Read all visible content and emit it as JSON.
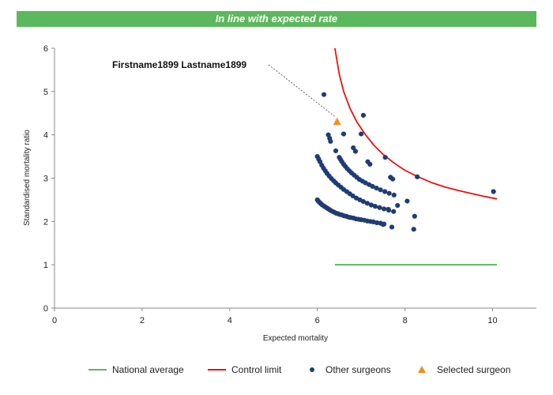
{
  "banner": {
    "title": "In line with expected rate"
  },
  "colors": {
    "banner": "#5cb85c",
    "national": "#5cb85c",
    "control": "#e8140e",
    "others": "#1f3d73",
    "selected": "#f0901e"
  },
  "chart_data": {
    "type": "scatter",
    "title": "In line with expected rate",
    "xlabel": "Expected mortality",
    "ylabel": "Standardised mortality ratio",
    "xlim": [
      0,
      11
    ],
    "ylim": [
      0,
      6
    ],
    "xticks": [
      0,
      2,
      4,
      6,
      8,
      10
    ],
    "yticks": [
      0,
      1,
      2,
      3,
      4,
      5,
      6
    ],
    "grid": false,
    "legend_position": "bottom",
    "annotation": {
      "text": "Firstname1899 Lastname1899",
      "target": [
        6.45,
        4.3
      ]
    },
    "series": [
      {
        "name": "National average",
        "kind": "line",
        "points": [
          [
            6.4,
            1.0
          ],
          [
            10.1,
            1.0
          ]
        ]
      },
      {
        "name": "Control limit",
        "kind": "line",
        "points": [
          [
            6.4,
            6.0
          ],
          [
            6.5,
            5.4
          ],
          [
            6.6,
            5.0
          ],
          [
            6.75,
            4.6
          ],
          [
            6.9,
            4.3
          ],
          [
            7.1,
            4.0
          ],
          [
            7.3,
            3.75
          ],
          [
            7.5,
            3.55
          ],
          [
            7.75,
            3.35
          ],
          [
            8.0,
            3.18
          ],
          [
            8.3,
            3.03
          ],
          [
            8.6,
            2.9
          ],
          [
            8.9,
            2.8
          ],
          [
            9.2,
            2.72
          ],
          [
            9.5,
            2.65
          ],
          [
            9.8,
            2.58
          ],
          [
            10.1,
            2.52
          ]
        ]
      },
      {
        "name": "Other surgeons",
        "kind": "scatter",
        "points": [
          [
            6.0,
            2.5
          ],
          [
            6.02,
            2.47
          ],
          [
            6.04,
            2.45
          ],
          [
            6.06,
            2.43
          ],
          [
            6.08,
            2.41
          ],
          [
            6.1,
            2.39
          ],
          [
            6.13,
            2.37
          ],
          [
            6.16,
            2.35
          ],
          [
            6.19,
            2.33
          ],
          [
            6.22,
            2.31
          ],
          [
            6.25,
            2.29
          ],
          [
            6.28,
            2.27
          ],
          [
            6.31,
            2.25
          ],
          [
            6.35,
            2.23
          ],
          [
            6.39,
            2.21
          ],
          [
            6.43,
            2.19
          ],
          [
            6.47,
            2.18
          ],
          [
            6.51,
            2.16
          ],
          [
            6.56,
            2.15
          ],
          [
            6.61,
            2.13
          ],
          [
            6.66,
            2.12
          ],
          [
            6.71,
            2.1
          ],
          [
            6.76,
            2.09
          ],
          [
            6.82,
            2.08
          ],
          [
            6.88,
            2.06
          ],
          [
            6.94,
            2.05
          ],
          [
            7.0,
            2.04
          ],
          [
            7.07,
            2.03
          ],
          [
            7.14,
            2.01
          ],
          [
            7.21,
            2.0
          ],
          [
            7.28,
            1.99
          ],
          [
            7.36,
            1.97
          ],
          [
            7.44,
            1.96
          ],
          [
            7.52,
            1.94
          ],
          [
            6.0,
            3.5
          ],
          [
            6.03,
            3.44
          ],
          [
            6.06,
            3.38
          ],
          [
            6.1,
            3.3
          ],
          [
            6.14,
            3.23
          ],
          [
            6.18,
            3.17
          ],
          [
            6.22,
            3.11
          ],
          [
            6.27,
            3.05
          ],
          [
            6.32,
            2.99
          ],
          [
            6.37,
            2.94
          ],
          [
            6.42,
            2.89
          ],
          [
            6.48,
            2.84
          ],
          [
            6.54,
            2.79
          ],
          [
            6.6,
            2.74
          ],
          [
            6.67,
            2.69
          ],
          [
            6.74,
            2.64
          ],
          [
            6.81,
            2.59
          ],
          [
            6.89,
            2.54
          ],
          [
            6.97,
            2.5
          ],
          [
            7.05,
            2.46
          ],
          [
            7.14,
            2.42
          ],
          [
            7.23,
            2.38
          ],
          [
            7.32,
            2.35
          ],
          [
            7.42,
            2.32
          ],
          [
            7.52,
            2.29
          ],
          [
            7.63,
            2.26
          ],
          [
            7.74,
            2.23
          ],
          [
            6.25,
            4.0
          ],
          [
            6.28,
            3.92
          ],
          [
            6.3,
            3.85
          ],
          [
            6.5,
            3.48
          ],
          [
            6.53,
            3.43
          ],
          [
            6.56,
            3.38
          ],
          [
            6.6,
            3.32
          ],
          [
            6.64,
            3.27
          ],
          [
            6.68,
            3.22
          ],
          [
            6.73,
            3.17
          ],
          [
            6.78,
            3.12
          ],
          [
            6.84,
            3.07
          ],
          [
            6.9,
            3.02
          ],
          [
            6.96,
            2.97
          ],
          [
            7.03,
            2.93
          ],
          [
            7.1,
            2.89
          ],
          [
            7.18,
            2.85
          ],
          [
            7.26,
            2.81
          ],
          [
            7.35,
            2.77
          ],
          [
            7.44,
            2.73
          ],
          [
            7.54,
            2.69
          ],
          [
            7.64,
            2.65
          ],
          [
            7.75,
            2.61
          ],
          [
            6.15,
            4.93
          ],
          [
            7.05,
            4.45
          ],
          [
            6.6,
            4.02
          ],
          [
            7.0,
            4.02
          ],
          [
            6.42,
            3.63
          ],
          [
            6.82,
            3.7
          ],
          [
            6.87,
            3.62
          ],
          [
            7.55,
            3.48
          ],
          [
            7.15,
            3.38
          ],
          [
            7.2,
            3.32
          ],
          [
            7.67,
            3.02
          ],
          [
            7.72,
            2.98
          ],
          [
            8.28,
            3.03
          ],
          [
            8.05,
            2.47
          ],
          [
            7.83,
            2.37
          ],
          [
            7.62,
            2.28
          ],
          [
            8.22,
            2.12
          ],
          [
            8.2,
            1.82
          ],
          [
            7.7,
            1.87
          ],
          [
            7.5,
            1.93
          ],
          [
            10.02,
            2.69
          ]
        ]
      },
      {
        "name": "Selected surgeon",
        "kind": "scatter",
        "points": [
          [
            6.45,
            4.3
          ]
        ]
      }
    ]
  }
}
